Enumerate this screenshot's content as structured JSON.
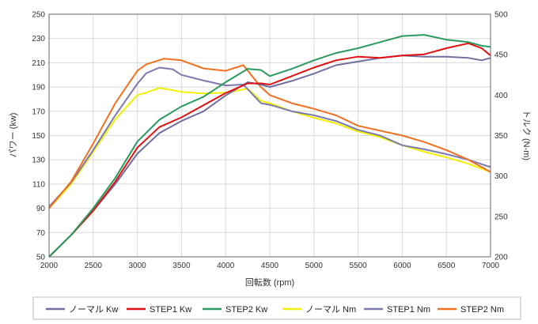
{
  "chart_data": {
    "type": "line",
    "xlabel": "回転数 (rpm)",
    "ylabel_left": "パワー (kw)",
    "ylabel_right": "トルク (N-m)",
    "xlim": [
      2000,
      7000
    ],
    "ylim_left": [
      50,
      250
    ],
    "ylim_right": [
      200,
      500
    ],
    "x_ticks": [
      "2000",
      "2500",
      "3000",
      "3500",
      "4000",
      "4500",
      "5000",
      "5500",
      "6000",
      "6500",
      "7000"
    ],
    "y_ticks_left": [
      "50",
      "70",
      "90",
      "110",
      "130",
      "150",
      "170",
      "190",
      "210",
      "230",
      "250"
    ],
    "y_ticks_right": [
      "200",
      "250",
      "300",
      "350",
      "400",
      "450",
      "500"
    ],
    "grid": true,
    "legend_position": "bottom",
    "series": [
      {
        "name": "ノーマル Kw",
        "axis": "left",
        "color": "#7070a0",
        "x": [
          2000,
          2250,
          2500,
          2750,
          3000,
          3250,
          3500,
          3750,
          4000,
          4250,
          4400,
          4500,
          4750,
          5000,
          5250,
          5500,
          5750,
          6000,
          6250,
          6500,
          6750,
          6900,
          7000
        ],
        "y": [
          50,
          68,
          88,
          110,
          135,
          152,
          162,
          170,
          183,
          194,
          192,
          190,
          195,
          201,
          208,
          211,
          214,
          216,
          215,
          215,
          214,
          212,
          214
        ]
      },
      {
        "name": "STEP1 Kw",
        "axis": "left",
        "color": "#e01010",
        "x": [
          2000,
          2250,
          2500,
          2750,
          3000,
          3250,
          3500,
          3750,
          4000,
          4250,
          4400,
          4500,
          4750,
          5000,
          5250,
          5500,
          5750,
          6000,
          6250,
          6500,
          6750,
          6900,
          7000
        ],
        "y": [
          50,
          68,
          88,
          112,
          140,
          157,
          165,
          175,
          185,
          193,
          193,
          192,
          199,
          206,
          212,
          215,
          214,
          216,
          217,
          222,
          226,
          222,
          216
        ]
      },
      {
        "name": "STEP2 Kw",
        "axis": "left",
        "color": "#2a9a60",
        "x": [
          2000,
          2250,
          2500,
          2750,
          3000,
          3250,
          3500,
          3750,
          4000,
          4250,
          4400,
          4500,
          4750,
          5000,
          5250,
          5500,
          5750,
          6000,
          6250,
          6500,
          6750,
          6900,
          7000
        ],
        "y": [
          50,
          68,
          90,
          115,
          145,
          163,
          174,
          182,
          194,
          205,
          204,
          199,
          205,
          212,
          218,
          222,
          227,
          232,
          233,
          229,
          227,
          224,
          223
        ]
      },
      {
        "name": "ノーマル Nm",
        "axis": "right",
        "color": "#f0f000",
        "x": [
          2000,
          2250,
          2500,
          2750,
          3000,
          3100,
          3250,
          3500,
          3750,
          4000,
          4250,
          4400,
          4500,
          4750,
          5000,
          5250,
          5500,
          5750,
          6000,
          6250,
          6500,
          6750,
          7000
        ],
        "y": [
          260,
          290,
          330,
          370,
          400,
          403,
          409,
          404,
          402,
          403,
          408,
          393,
          390,
          380,
          372,
          365,
          355,
          348,
          338,
          330,
          323,
          315,
          305
        ]
      },
      {
        "name": "STEP1 Nm",
        "axis": "right",
        "color": "#7a7ab0",
        "x": [
          2000,
          2250,
          2500,
          2750,
          3000,
          3100,
          3250,
          3400,
          3500,
          3750,
          4000,
          4200,
          4400,
          4500,
          4750,
          5000,
          5250,
          5500,
          5750,
          6000,
          6250,
          6500,
          6750,
          7000
        ],
        "y": [
          262,
          292,
          332,
          375,
          414,
          427,
          434,
          432,
          425,
          418,
          412,
          413,
          390,
          388,
          380,
          375,
          368,
          357,
          350,
          338,
          333,
          327,
          320,
          311
        ]
      },
      {
        "name": "STEP2 Nm",
        "axis": "right",
        "color": "#f07020",
        "x": [
          2000,
          2250,
          2500,
          2750,
          3000,
          3100,
          3300,
          3500,
          3750,
          4000,
          4200,
          4400,
          4500,
          4750,
          5000,
          5250,
          5500,
          5750,
          6000,
          6250,
          6500,
          6750,
          7000
        ],
        "y": [
          260,
          293,
          340,
          390,
          430,
          438,
          445,
          443,
          433,
          430,
          437,
          410,
          400,
          390,
          383,
          375,
          362,
          356,
          350,
          342,
          332,
          320,
          305
        ]
      }
    ]
  }
}
